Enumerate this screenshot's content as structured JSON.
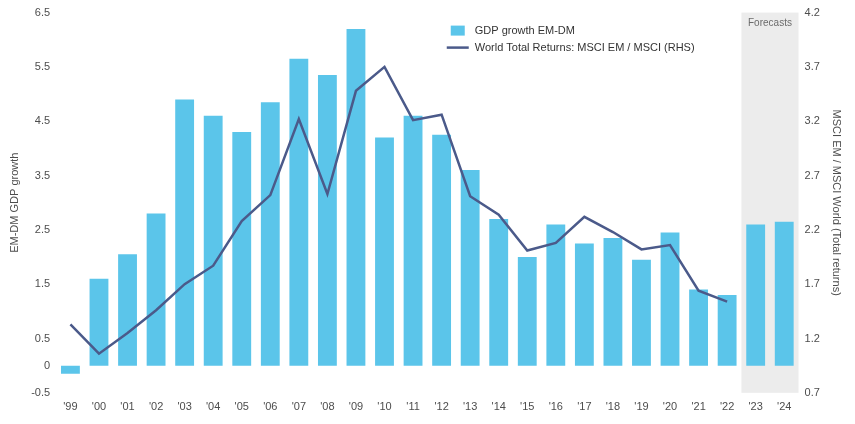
{
  "chart_data": {
    "type": "bar",
    "categories": [
      "'99",
      "'00",
      "'01",
      "'02",
      "'03",
      "'04",
      "'05",
      "'06",
      "'07",
      "'08",
      "'09",
      "'10",
      "'11",
      "'12",
      "'13",
      "'14",
      "'15",
      "'16",
      "'17",
      "'18",
      "'19",
      "'20",
      "'21",
      "'22",
      "'23",
      "'24"
    ],
    "series": [
      {
        "name": "GDP growth EM-DM",
        "type": "bar",
        "color": "#5bc5ea",
        "values": [
          -0.15,
          1.6,
          2.05,
          2.8,
          4.9,
          4.6,
          4.3,
          4.85,
          5.65,
          5.35,
          6.2,
          4.2,
          4.6,
          4.25,
          3.6,
          2.7,
          2.0,
          2.6,
          2.25,
          2.35,
          1.95,
          2.45,
          1.4,
          1.3,
          2.6,
          2.65
        ]
      },
      {
        "name": "World Total Returns: MSCI EM / MSCI (RHS)",
        "type": "line",
        "color": "#4b5a8a",
        "axis": "y2",
        "values": [
          1.33,
          1.06,
          1.25,
          1.46,
          1.7,
          1.87,
          2.28,
          2.52,
          3.22,
          2.53,
          3.48,
          3.7,
          3.21,
          3.26,
          2.51,
          2.34,
          2.01,
          2.08,
          2.32,
          2.18,
          2.02,
          2.06,
          1.64,
          1.54,
          null,
          null
        ]
      }
    ],
    "y_label": "EM-DM GDP growth",
    "y2_label": "MSCI EM / MSCI World (Total returns)",
    "ylim": [
      -0.5,
      6.5
    ],
    "yticks": [
      -0.5,
      0,
      0.5,
      1.5,
      2.5,
      3.5,
      4.5,
      5.5,
      6.5
    ],
    "y2lim": [
      0.7,
      4.2
    ],
    "y2ticks": [
      0.7,
      1.2,
      1.7,
      2.2,
      2.7,
      3.2,
      3.7,
      4.2
    ],
    "annotations": [
      {
        "text": "Forecasts",
        "from": "'23",
        "to": "'24"
      }
    ],
    "grid": false,
    "legend": "upper right"
  }
}
